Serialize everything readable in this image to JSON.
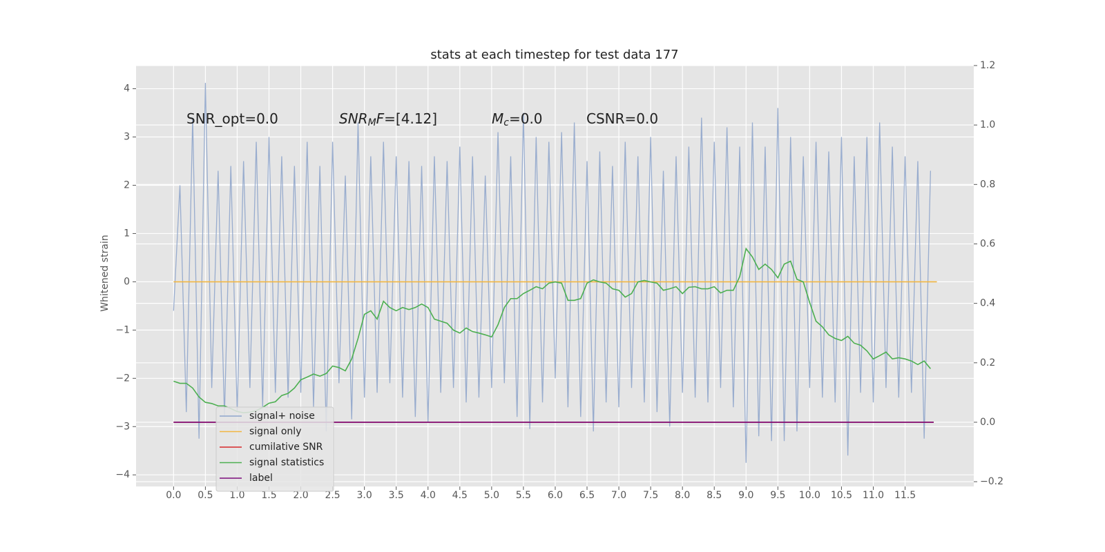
{
  "chart_data": {
    "type": "line",
    "title": "stats at each timestep for test data 177",
    "ylabel": "Whitened strain",
    "annotations": [
      [
        {
          "text": "SNR_opt=0.0",
          "style": "normal"
        }
      ],
      [
        {
          "text": "SNR",
          "style": "italic"
        },
        {
          "text": "M",
          "style": "sub"
        },
        {
          "text": "F",
          "style": "italic"
        },
        {
          "text": "=[4.12]",
          "style": "normal"
        }
      ],
      [
        {
          "text": "M",
          "style": "italic"
        },
        {
          "text": "c",
          "style": "sub"
        },
        {
          "text": "=0.0",
          "style": "normal"
        }
      ],
      [
        {
          "text": "CSNR=0.0",
          "style": "normal"
        }
      ]
    ],
    "xlim": [
      -0.59,
      12.58
    ],
    "xticks": [
      {
        "value": 0,
        "label": "0.0"
      },
      0.5,
      {
        "value": 1,
        "label": "1.0"
      },
      1.5,
      {
        "value": 2,
        "label": "2.0"
      },
      2.5,
      {
        "value": 3,
        "label": "3.0"
      },
      3.5,
      {
        "value": 4,
        "label": "4.0"
      },
      4.5,
      {
        "value": 5,
        "label": "5.0"
      },
      5.5,
      {
        "value": 6,
        "label": "6.0"
      },
      6.5,
      {
        "value": 7,
        "label": "7.0"
      },
      7.5,
      {
        "value": 8,
        "label": "8.0"
      },
      8.5,
      {
        "value": 9,
        "label": "9.0"
      },
      9.5,
      {
        "value": 10,
        "label": "10.0"
      },
      10.5,
      {
        "value": 11,
        "label": "11.0"
      },
      11.5
    ],
    "ylim": [
      -4.24,
      4.48
    ],
    "yticks": [
      {
        "value": -4,
        "label": "−4"
      },
      {
        "value": -3,
        "label": "−3"
      },
      {
        "value": -2,
        "label": "−2"
      },
      {
        "value": -1,
        "label": "−1"
      },
      0,
      1,
      2,
      3,
      4
    ],
    "y2lim": [
      -0.216,
      1.2
    ],
    "y2ticks": [
      {
        "value": -0.2,
        "label": "−0.2"
      },
      {
        "value": 0,
        "label": "0.0"
      },
      0.2,
      0.4,
      0.6,
      0.8,
      {
        "value": 1,
        "label": "1.0"
      },
      1.2
    ],
    "grid": true,
    "legend_loc": "lower left",
    "x": [
      0,
      0.1,
      0.2,
      0.3,
      0.4,
      0.5,
      0.6,
      0.7,
      0.8,
      0.9,
      1,
      1.1,
      1.2,
      1.3,
      1.4,
      1.5,
      1.6,
      1.7,
      1.8,
      1.9,
      2,
      2.1,
      2.2,
      2.3,
      2.4,
      2.5,
      2.6,
      2.7,
      2.8,
      2.9,
      3,
      3.1,
      3.2,
      3.3,
      3.4,
      3.5,
      3.6,
      3.7,
      3.8,
      3.9,
      4,
      4.1,
      4.2,
      4.3,
      4.4,
      4.5,
      4.6,
      4.7,
      4.8,
      4.9,
      5,
      5.1,
      5.2,
      5.3,
      5.4,
      5.5,
      5.6,
      5.7,
      5.8,
      5.9,
      6,
      6.1,
      6.2,
      6.3,
      6.4,
      6.5,
      6.6,
      6.7,
      6.8,
      6.9,
      7,
      7.1,
      7.2,
      7.3,
      7.4,
      7.5,
      7.6,
      7.7,
      7.8,
      7.9,
      8,
      8.1,
      8.2,
      8.3,
      8.4,
      8.5,
      8.6,
      8.7,
      8.8,
      8.9,
      9,
      9.1,
      9.2,
      9.3,
      9.4,
      9.5,
      9.6,
      9.7,
      9.8,
      9.9,
      10,
      10.1,
      10.2,
      10.3,
      10.4,
      10.5,
      10.6,
      10.7,
      10.8,
      10.9,
      11,
      11.1,
      11.2,
      11.3,
      11.4,
      11.5,
      11.6,
      11.7,
      11.8,
      11.9
    ],
    "series": [
      {
        "name": "signal+ noise",
        "color": "#8fa5cb",
        "values": [
          -0.6,
          2.0,
          -2.7,
          3.4,
          -3.25,
          4.12,
          -2.2,
          2.3,
          -2.8,
          2.4,
          -2.7,
          2.5,
          -2.2,
          2.9,
          -2.6,
          3.0,
          -2.3,
          2.6,
          -2.4,
          2.4,
          -2.3,
          2.9,
          -2.6,
          2.4,
          -3.1,
          2.9,
          -2.1,
          2.2,
          -2.85,
          3.3,
          -2.4,
          2.6,
          -2.3,
          2.9,
          -2.1,
          2.6,
          -2.4,
          2.5,
          -2.8,
          2.4,
          -2.9,
          2.6,
          -2.3,
          2.5,
          -2.2,
          2.8,
          -2.5,
          2.6,
          -2.4,
          2.2,
          -2.2,
          3.1,
          -2.1,
          2.6,
          -2.8,
          3.5,
          -3.05,
          3.0,
          -2.5,
          2.9,
          -2.0,
          3.1,
          -2.6,
          3.3,
          -2.8,
          2.5,
          -3.1,
          2.7,
          -2.5,
          2.4,
          -2.6,
          2.9,
          -2.2,
          2.6,
          -2.5,
          3.0,
          -2.7,
          2.3,
          -3.0,
          2.6,
          -2.3,
          2.8,
          -2.4,
          3.4,
          -2.5,
          2.9,
          -2.2,
          3.2,
          -2.6,
          2.8,
          -3.75,
          3.3,
          -3.2,
          2.8,
          -3.3,
          3.6,
          -3.3,
          3.0,
          -3.1,
          2.6,
          -2.2,
          2.9,
          -2.4,
          2.7,
          -2.5,
          3.0,
          -3.6,
          2.6,
          -2.3,
          3.0,
          -2.5,
          3.3,
          -2.2,
          2.8,
          -2.4,
          2.6,
          -2.3,
          2.5,
          -3.25,
          2.3
        ]
      },
      {
        "name": "signal only",
        "color": "#f2b640",
        "x": [
          0,
          12
        ],
        "values": [
          0,
          0
        ]
      },
      {
        "name": "cumilative SNR",
        "color": "#d62728",
        "axis": "y2",
        "x": [
          0,
          11.95
        ],
        "values": [
          0,
          0
        ]
      },
      {
        "name": "signal statistics",
        "color": "#4caf50",
        "axis": "y2",
        "values": [
          0.138,
          0.131,
          0.131,
          0.115,
          0.085,
          0.067,
          0.063,
          0.055,
          0.055,
          0.046,
          0.036,
          0.032,
          0.034,
          0.039,
          0.05,
          0.064,
          0.069,
          0.09,
          0.097,
          0.115,
          0.143,
          0.152,
          0.162,
          0.155,
          0.164,
          0.189,
          0.184,
          0.173,
          0.213,
          0.282,
          0.363,
          0.375,
          0.347,
          0.407,
          0.386,
          0.375,
          0.386,
          0.379,
          0.386,
          0.398,
          0.386,
          0.347,
          0.34,
          0.333,
          0.31,
          0.3,
          0.317,
          0.305,
          0.3,
          0.294,
          0.287,
          0.328,
          0.386,
          0.416,
          0.416,
          0.433,
          0.444,
          0.456,
          0.449,
          0.468,
          0.472,
          0.468,
          0.41,
          0.41,
          0.416,
          0.468,
          0.479,
          0.472,
          0.468,
          0.449,
          0.444,
          0.421,
          0.433,
          0.472,
          0.477,
          0.472,
          0.468,
          0.444,
          0.449,
          0.456,
          0.433,
          0.454,
          0.456,
          0.449,
          0.449,
          0.456,
          0.435,
          0.444,
          0.444,
          0.49,
          0.584,
          0.556,
          0.514,
          0.532,
          0.514,
          0.486,
          0.532,
          0.542,
          0.481,
          0.472,
          0.403,
          0.34,
          0.321,
          0.294,
          0.282,
          0.275,
          0.289,
          0.266,
          0.259,
          0.24,
          0.213,
          0.224,
          0.236,
          0.213,
          0.217,
          0.213,
          0.206,
          0.194,
          0.206,
          0.18
        ]
      },
      {
        "name": "label",
        "color": "#7b0d7b",
        "axis": "y2",
        "x": [
          0,
          11.95
        ],
        "values": [
          0,
          0
        ]
      }
    ]
  }
}
